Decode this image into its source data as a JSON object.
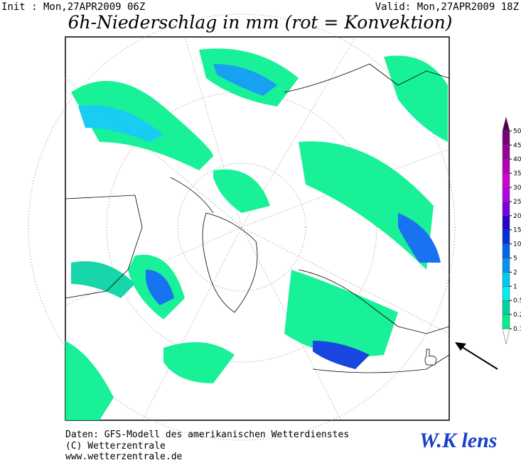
{
  "header": {
    "init": "Init : Mon,27APR2009 06Z",
    "valid": "Valid: Mon,27APR2009 18Z",
    "title": "6h-Niederschlag in mm (rot = Konvektion)"
  },
  "legend": {
    "levels": [
      0.1,
      0.2,
      0.5,
      1,
      2,
      5,
      10,
      15,
      20,
      25,
      30,
      35,
      40,
      45,
      50
    ],
    "colors": [
      "#ffffff",
      "#00f08c",
      "#00d2a0",
      "#00f0f0",
      "#00c8f0",
      "#0096f0",
      "#0064f0",
      "#0032dc",
      "#2800c8",
      "#7800dc",
      "#b400e6",
      "#d200d2",
      "#b400b4",
      "#960096",
      "#780078",
      "#500050"
    ]
  },
  "footer": {
    "lines": [
      "Daten: GFS-Modell des amerikanischen Wetterdienstes",
      "(C) Wetterzentrale",
      "www.wetterzentrale.de"
    ]
  },
  "watermark": "W.K lens"
}
